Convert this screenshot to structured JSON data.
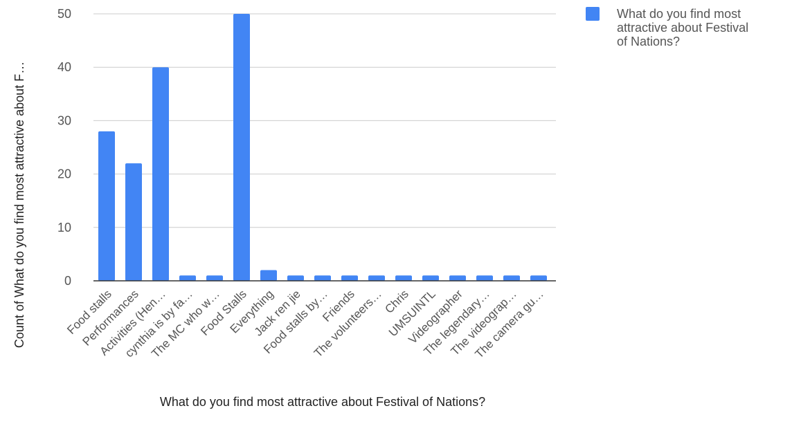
{
  "chart_data": {
    "type": "bar",
    "categories": [
      "Food stalls",
      "Performances",
      "Activities (Hen…",
      "cynthia is by fa…",
      "The MC who w…",
      "Food Stalls",
      "Everything",
      "Jack ren jie",
      "Food stalls by…",
      "Friends",
      "The volunteers…",
      "Chris",
      "UMSUINTL",
      "Videographer",
      "The legendary…",
      "The videograp…",
      "The camera gu…"
    ],
    "series": [
      {
        "name": "What do you find most attractive about Festival of Nations?",
        "values": [
          28,
          22,
          40,
          1,
          1,
          50,
          2,
          1,
          1,
          1,
          1,
          1,
          1,
          1,
          1,
          1,
          1
        ],
        "color": "#4285f4"
      }
    ],
    "xlabel": "What do you find most attractive about Festival of Nations?",
    "ylabel": "Count of What do you find most attractive about F…",
    "ylim": [
      0,
      50
    ],
    "yticks": [
      0,
      10,
      20,
      30,
      40,
      50
    ],
    "grid": true,
    "legend": {
      "position": "top-right",
      "lines": [
        "What do you find most",
        "attractive about Festival",
        "of Nations?"
      ]
    },
    "colors": {
      "bar": "#4285f4",
      "grid": "#cccccc",
      "axis": "#333333"
    }
  }
}
